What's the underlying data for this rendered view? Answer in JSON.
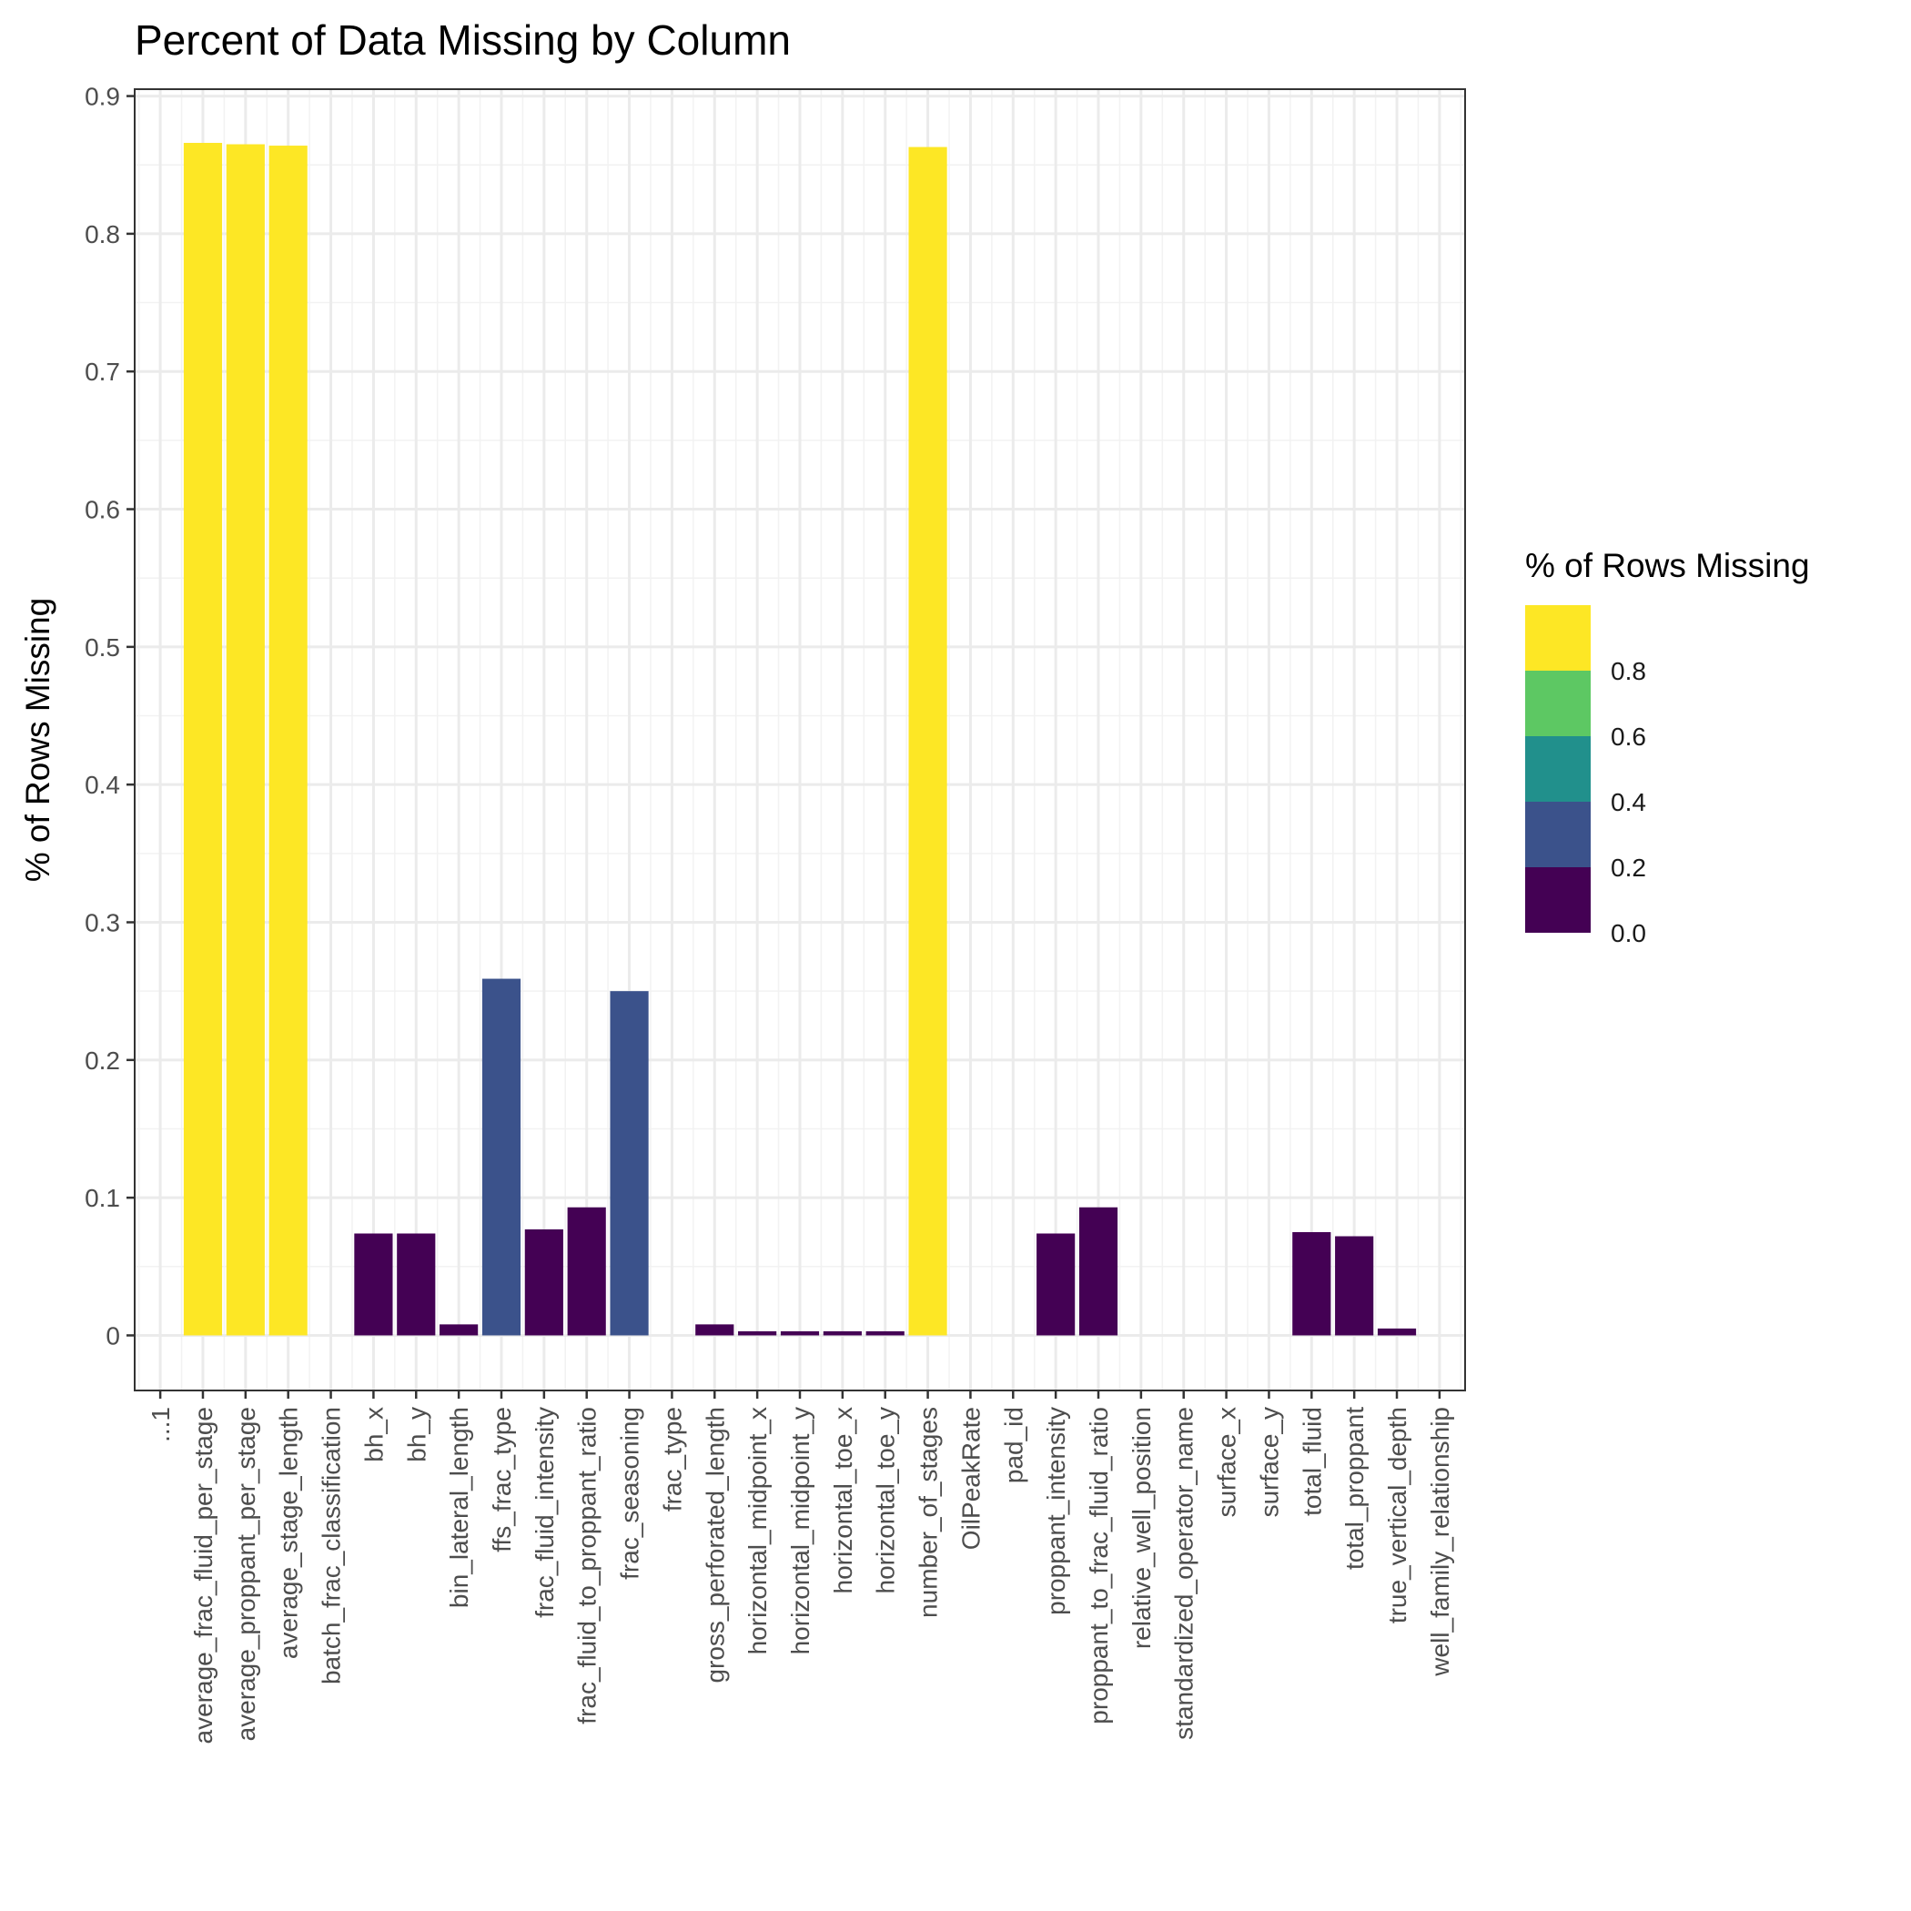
{
  "chart_data": {
    "type": "bar",
    "title": "Percent of Data Missing by Column",
    "xlabel": "",
    "ylabel": "% of Rows Missing",
    "ylim": [
      -0.04,
      0.905
    ],
    "y_ticks": [
      {
        "value": 0,
        "label": "0"
      },
      {
        "value": 0.1,
        "label": "0.1"
      },
      {
        "value": 0.2,
        "label": "0.2"
      },
      {
        "value": 0.3,
        "label": "0.3"
      },
      {
        "value": 0.4,
        "label": "0.4"
      },
      {
        "value": 0.5,
        "label": "0.5"
      },
      {
        "value": 0.6,
        "label": "0.6"
      },
      {
        "value": 0.7,
        "label": "0.7"
      },
      {
        "value": 0.8,
        "label": "0.8"
      },
      {
        "value": 0.9,
        "label": "0.9"
      }
    ],
    "grid": true,
    "categories": [
      "...1",
      "average_frac_fluid_per_stage",
      "average_proppant_per_stage",
      "average_stage_length",
      "batch_frac_classification",
      "bh_x",
      "bh_y",
      "bin_lateral_length",
      "ffs_frac_type",
      "frac_fluid_intensity",
      "frac_fluid_to_proppant_ratio",
      "frac_seasoning",
      "frac_type",
      "gross_perforated_length",
      "horizontal_midpoint_x",
      "horizontal_midpoint_y",
      "horizontal_toe_x",
      "horizontal_toe_y",
      "number_of_stages",
      "OilPeakRate",
      "pad_id",
      "proppant_intensity",
      "proppant_to_frac_fluid_ratio",
      "relative_well_position",
      "standardized_operator_name",
      "surface_x",
      "surface_y",
      "total_fluid",
      "total_proppant",
      "true_vertical_depth",
      "well_family_relationship"
    ],
    "values": [
      0,
      0.866,
      0.865,
      0.864,
      0,
      0.074,
      0.074,
      0.008,
      0.259,
      0.077,
      0.093,
      0.25,
      0,
      0.008,
      0.003,
      0.003,
      0.003,
      0.003,
      0.863,
      0,
      0,
      0.074,
      0.093,
      0,
      0,
      0,
      0,
      0.075,
      0.072,
      0.005,
      0
    ],
    "legend": {
      "title": "% of Rows Missing",
      "position": "right",
      "bins": [
        {
          "min": 0.0,
          "max": 0.2,
          "color": "#440154"
        },
        {
          "min": 0.2,
          "max": 0.4,
          "color": "#3B528B"
        },
        {
          "min": 0.4,
          "max": 0.6,
          "color": "#21908C"
        },
        {
          "min": 0.6,
          "max": 0.8,
          "color": "#5DC863"
        },
        {
          "min": 0.8,
          "max": 1.0,
          "color": "#FDE725"
        }
      ],
      "tick_labels": [
        "0.0",
        "0.2",
        "0.4",
        "0.6",
        "0.8"
      ]
    }
  }
}
